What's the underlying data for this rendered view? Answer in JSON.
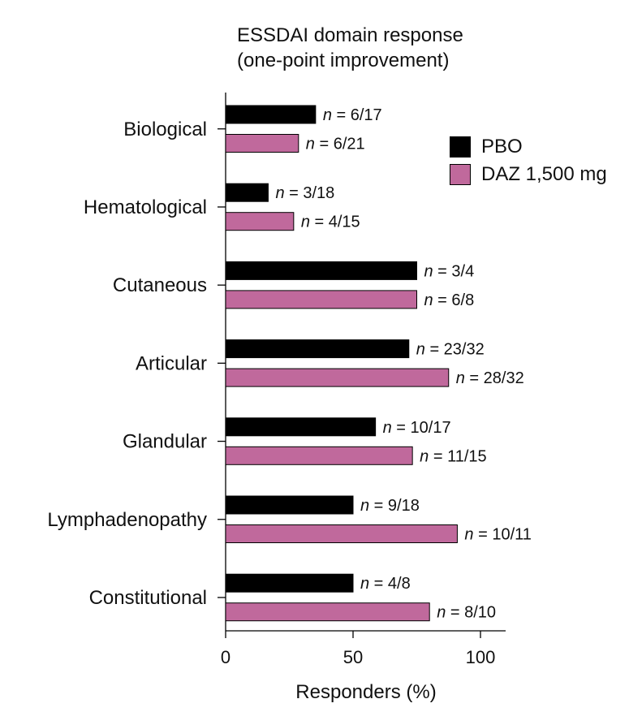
{
  "chart_data": {
    "type": "bar",
    "orientation": "horizontal",
    "title": [
      "ESSDAI domain response",
      "(one-point improvement)"
    ],
    "categories": [
      "Biological",
      "Hematological",
      "Cutaneous",
      "Articular",
      "Glandular",
      "Lymphadenopathy",
      "Constitutional"
    ],
    "series": [
      {
        "name": "PBO",
        "color": "#000000",
        "values": [
          35.3,
          16.7,
          75.0,
          71.9,
          58.8,
          50.0,
          50.0
        ],
        "labels": [
          "6/17",
          "3/18",
          "3/4",
          "23/32",
          "10/17",
          "9/18",
          "4/8"
        ]
      },
      {
        "name": "DAZ 1,500 mg",
        "color": "#c0699c",
        "values": [
          28.6,
          26.7,
          75.0,
          87.5,
          73.3,
          90.9,
          80.0
        ],
        "labels": [
          "6/21",
          "4/15",
          "6/8",
          "28/32",
          "11/15",
          "10/11",
          "8/10"
        ]
      }
    ],
    "label_prefix": "n",
    "xlabel": "Responders (%)",
    "xlim": [
      0,
      110
    ],
    "xticks": [
      0,
      50,
      100
    ],
    "legend_position": "right",
    "grid": false
  }
}
